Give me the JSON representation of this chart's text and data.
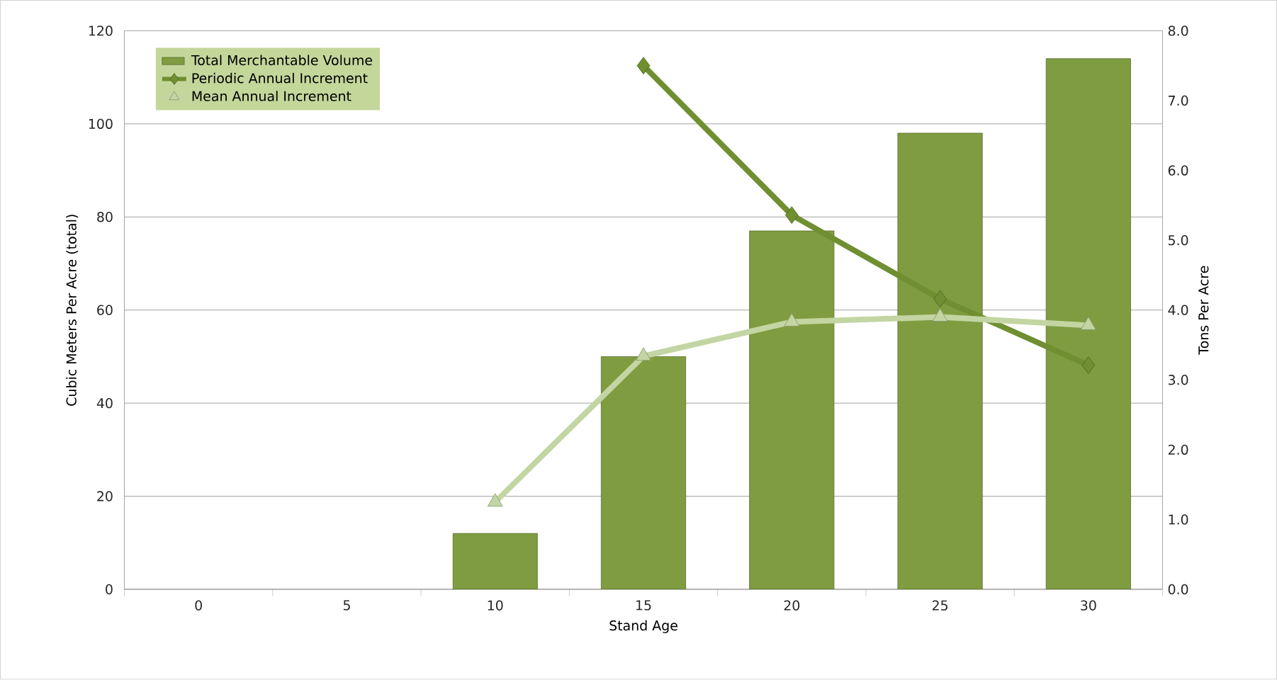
{
  "chart_data": {
    "type": "bar",
    "xlabel": "Stand Age",
    "ylabel": "Cubic Meters Per Acre (total)",
    "y2label": "Tons Per Acre",
    "categories": [
      "0",
      "5",
      "10",
      "15",
      "20",
      "25",
      "30"
    ],
    "series": [
      {
        "name": "Total Merchantable Volume",
        "color": "#7f9c40",
        "values": [
          null,
          null,
          12,
          50,
          77,
          98,
          114
        ]
      },
      {
        "name": "Periodic Annual Increment",
        "type": "line",
        "axis": "y2",
        "marker": "diamond",
        "color": "#6f8f30",
        "values": [
          null,
          null,
          null,
          7.5,
          5.36,
          4.16,
          3.21
        ]
      },
      {
        "name": "Mean Annual Increment",
        "type": "line",
        "axis": "y2",
        "marker": "triangle",
        "color": "#c3d5a2",
        "values": [
          null,
          null,
          1.25,
          3.34,
          3.83,
          3.9,
          3.78
        ]
      }
    ],
    "ylim": [
      0,
      120
    ],
    "yticks": [
      0,
      20,
      40,
      60,
      80,
      100,
      120
    ],
    "y2lim": [
      0,
      8
    ],
    "y2ticks": [
      {
        "value": 0,
        "label": "0.0"
      },
      {
        "value": 1,
        "label": "1.0"
      },
      {
        "value": 2,
        "label": "2.0"
      },
      {
        "value": 3,
        "label": "3.0"
      },
      {
        "value": 4,
        "label": "4.0"
      },
      {
        "value": 5,
        "label": "5.0"
      },
      {
        "value": 6,
        "label": "6.0"
      },
      {
        "value": 7,
        "label": "7.0"
      },
      {
        "value": 8,
        "label": "8.0"
      }
    ],
    "grid": "y",
    "legend": "top left"
  }
}
